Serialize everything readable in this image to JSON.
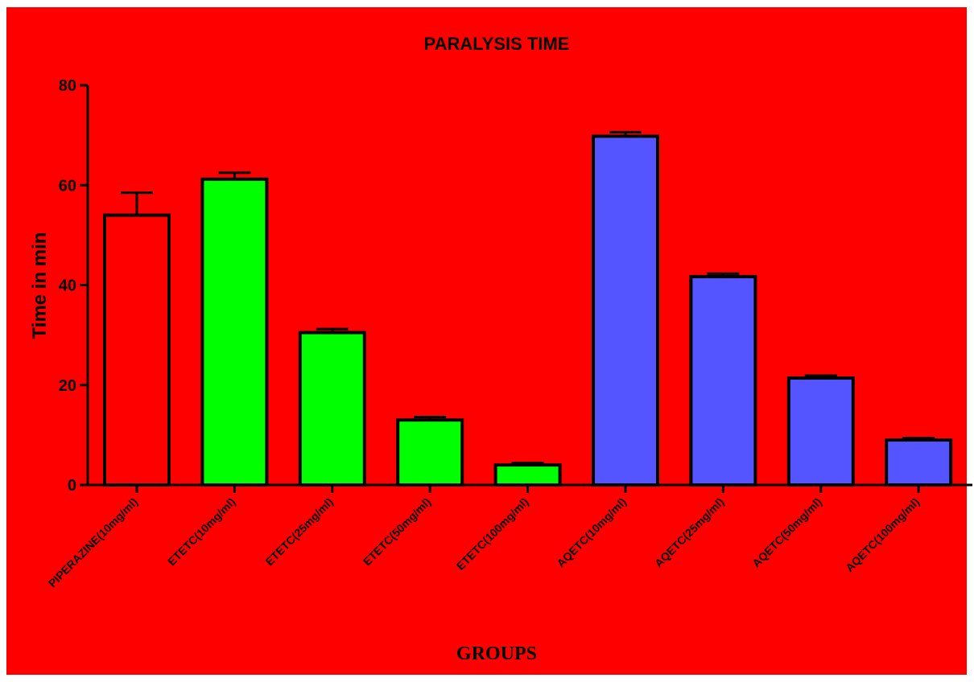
{
  "chart_data": {
    "type": "bar",
    "title": "PARALYSIS TIME",
    "xlabel": "GROUPS",
    "ylabel": "Time in min",
    "ylim": [
      0,
      80
    ],
    "yticks": [
      "0",
      "20",
      "40",
      "60",
      "80"
    ],
    "grid": false,
    "background_color": "#ff0000",
    "categories": [
      "PIPERAZINE(10mg/ml)",
      "ETETC(10mg/ml)",
      "ETETC(25mg/ml)",
      "ETETC(50mg/ml)",
      "ETETC(100mg/ml)",
      "AQETC(10mg/ml)",
      "AQETC(25mg/ml)",
      "AQETC(50mg/ml)",
      "AQETC(100mg/ml)"
    ],
    "values": [
      54.0,
      61.2,
      30.5,
      13.0,
      4.0,
      69.8,
      41.7,
      21.4,
      9.0
    ],
    "errors": [
      4.5,
      1.3,
      0.7,
      0.6,
      0.4,
      0.8,
      0.6,
      0.5,
      0.4
    ],
    "bar_colors": [
      "#ff0000",
      "#00ff00",
      "#00ff00",
      "#00ff00",
      "#00ff00",
      "#5555ff",
      "#5555ff",
      "#5555ff",
      "#5555ff"
    ]
  }
}
